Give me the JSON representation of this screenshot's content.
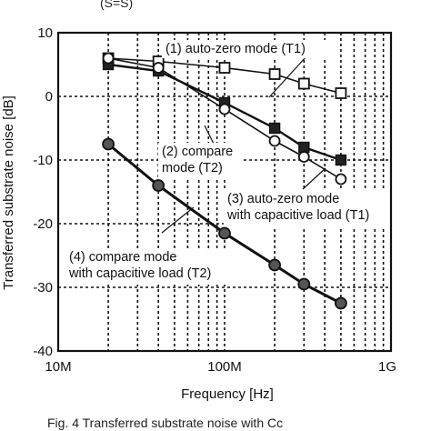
{
  "top_fragment": "(S=S)",
  "caption": "Fig. 4 Transferred substrate noise with Cc",
  "chart_data": {
    "type": "line",
    "xlabel": "Frequency [Hz]",
    "ylabel": "Transferred substrate noise [dB]",
    "xscale": "log",
    "xlim": [
      10000000,
      1000000000
    ],
    "ylim": [
      -40,
      10
    ],
    "x_ticks": [
      10000000,
      100000000,
      1000000000
    ],
    "x_tick_labels": [
      "10M",
      "100M",
      "1G"
    ],
    "y_ticks": [
      10,
      0,
      -10,
      -20,
      -30,
      -40
    ],
    "y_tick_labels": [
      "10",
      "0",
      "-10",
      "-20",
      "-30",
      "-40"
    ],
    "grid": true,
    "series": [
      {
        "name": "(1) auto-zero mode (T1)",
        "marker": "open-square",
        "x": [
          20000000,
          40000000,
          100000000,
          200000000,
          300000000,
          500000000
        ],
        "y": [
          6,
          5.5,
          4.5,
          3.5,
          2,
          0.5
        ]
      },
      {
        "name": "(2) compare mode (T2)",
        "marker": "filled-square",
        "x": [
          20000000,
          40000000,
          100000000,
          200000000,
          300000000,
          500000000
        ],
        "y": [
          5,
          4,
          -1,
          -5,
          -8,
          -10
        ]
      },
      {
        "name": "(3) auto-zero mode with capacitive load (T1)",
        "marker": "open-circle",
        "x": [
          20000000,
          40000000,
          100000000,
          200000000,
          300000000,
          500000000
        ],
        "y": [
          6,
          4.5,
          -2,
          -7,
          -9.5,
          -13
        ]
      },
      {
        "name": "(4) compare mode with capacitive load (T2)",
        "marker": "shaded-circle",
        "x": [
          20000000,
          40000000,
          100000000,
          200000000,
          300000000,
          500000000
        ],
        "y": [
          -7.5,
          -14,
          -21.5,
          -26.5,
          -29.5,
          -32.5
        ]
      }
    ],
    "annotations": [
      {
        "lines": [
          "(1) auto-zero mode (T1)"
        ],
        "target_series": 0
      },
      {
        "lines": [
          "(2) compare",
          "mode (T2)"
        ],
        "target_series": 1
      },
      {
        "lines": [
          "(3) auto-zero mode",
          "with capacitive load (T1)"
        ],
        "target_series": 2
      },
      {
        "lines": [
          "(4) compare mode",
          "with capacitive load (T2)"
        ],
        "target_series": 3
      }
    ]
  }
}
